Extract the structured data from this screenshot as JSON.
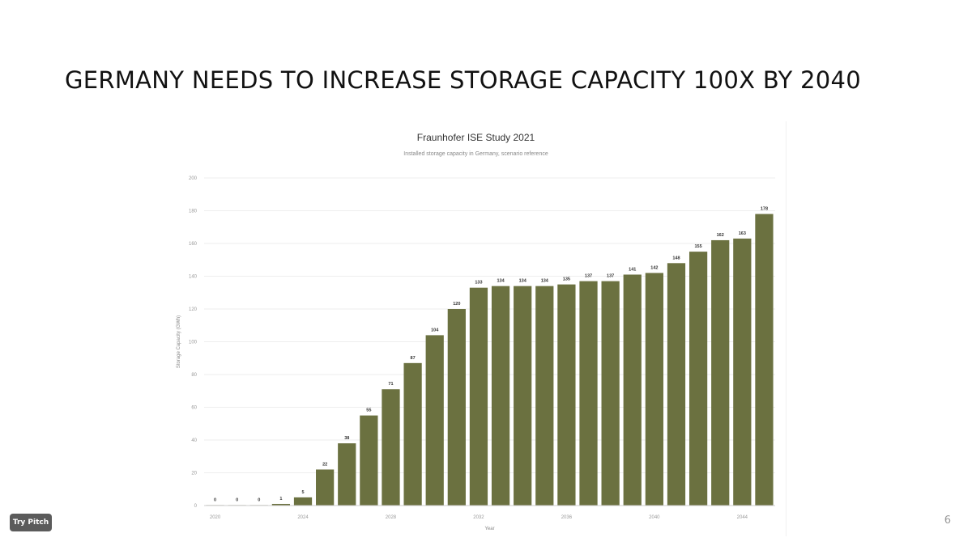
{
  "slide": {
    "title": "GERMANY NEEDS TO INCREASE STORAGE CAPACITY 100X BY 2040",
    "page_number": "6",
    "try_pitch_label": "Try Pitch"
  },
  "chart_data": {
    "type": "bar",
    "title": "Fraunhofer ISE Study 2021",
    "subtitle": "Installed storage capacity in Germany, scenario reference",
    "xlabel": "Year",
    "ylabel": "Storage Capacity (GWh)",
    "ylim": [
      0,
      200
    ],
    "yticks": [
      0,
      20,
      40,
      60,
      80,
      100,
      120,
      140,
      160,
      180,
      200
    ],
    "grid": true,
    "legend": "none",
    "bar_color": "#6b7140",
    "categories": [
      2020,
      2021,
      2022,
      2023,
      2024,
      2025,
      2026,
      2027,
      2028,
      2029,
      2030,
      2031,
      2032,
      2033,
      2034,
      2035,
      2036,
      2037,
      2038,
      2039,
      2040,
      2041,
      2042,
      2043,
      2044,
      2045
    ],
    "xtick_labels": [
      "2020",
      "2024",
      "2028",
      "2032",
      "2036",
      "2040",
      "2044"
    ],
    "values": [
      0,
      0,
      0,
      1,
      5,
      22,
      38,
      55,
      71,
      87,
      104,
      120,
      133,
      134,
      134,
      134,
      135,
      137,
      137,
      141,
      142,
      148,
      155,
      162,
      163,
      178
    ]
  }
}
